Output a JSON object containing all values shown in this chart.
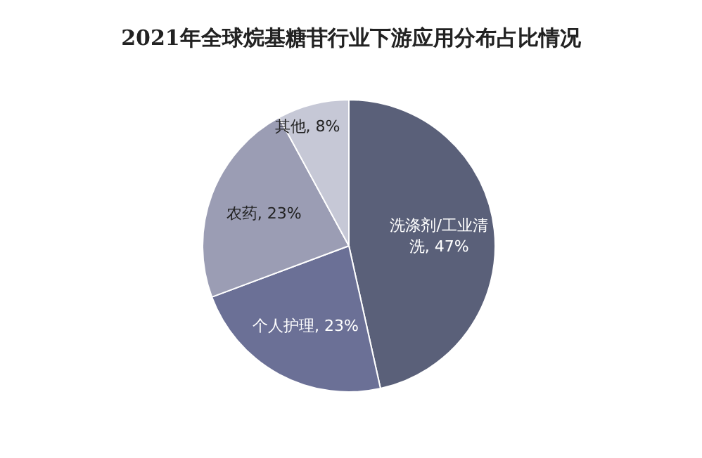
{
  "chart_data": {
    "type": "pie",
    "title": "2021年全球烷基糖苷行业下游应用分布占比情况",
    "categories": [
      "洗涤剂/工业清洗",
      "个人护理",
      "农药",
      "其他"
    ],
    "values": [
      47,
      23,
      23,
      8
    ],
    "colors": [
      "#5a6079",
      "#6b7096",
      "#9b9db4",
      "#c6c8d6"
    ],
    "value_labels": [
      ", 47%",
      ", 23%",
      ", 23%",
      ", 8%"
    ]
  }
}
